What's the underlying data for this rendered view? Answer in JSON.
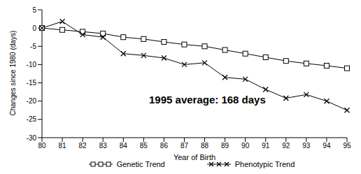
{
  "chart_data": {
    "type": "line",
    "x_label": "Year of Birth",
    "y_label": "Changes since 1980 (days)",
    "annotation": "1995 average: 168 days",
    "categories": [
      "80",
      "81",
      "82",
      "83",
      "84",
      "85",
      "86",
      "87",
      "88",
      "89",
      "90",
      "91",
      "92",
      "93",
      "94",
      "95"
    ],
    "series": [
      {
        "name": "Genetic Trend",
        "color": "#000000",
        "marker": "square",
        "line_style": "solid",
        "values": [
          0,
          -0.5,
          -1,
          -1.5,
          -2.5,
          -3,
          -3.8,
          -4.5,
          -5,
          -6,
          -7,
          -8,
          -9,
          -9.7,
          -10.3,
          -11
        ]
      },
      {
        "name": "Phenotypic Trend",
        "color": "#000000",
        "marker": "x",
        "line_style": "solid",
        "values": [
          0,
          1.8,
          -1.8,
          -2.5,
          -7,
          -7.5,
          -8.2,
          -10,
          -9.5,
          -13.5,
          -14,
          -16.8,
          -19.2,
          -18.2,
          -20,
          -22.5
        ]
      }
    ],
    "ylim": [
      -30,
      5
    ],
    "yticks": [
      5,
      0,
      -5,
      -10,
      -15,
      -20,
      -25,
      -30
    ],
    "grid": false,
    "legend": "bottom"
  }
}
